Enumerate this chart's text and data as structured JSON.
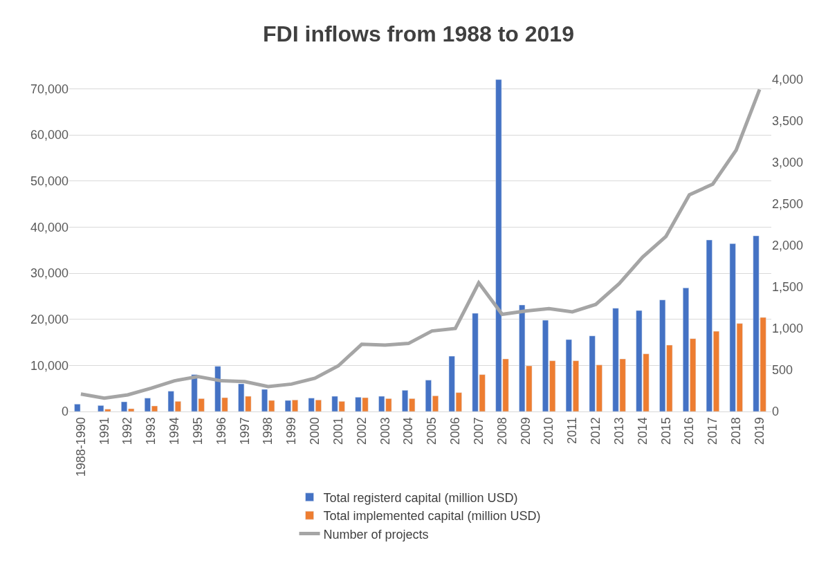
{
  "chart_data": {
    "type": "bar",
    "title": "FDI inflows from 1988 to 2019",
    "categories": [
      "1988-1990",
      "1991",
      "1992",
      "1993",
      "1994",
      "1995",
      "1996",
      "1997",
      "1998",
      "1999",
      "2000",
      "2001",
      "2002",
      "2003",
      "2004",
      "2005",
      "2006",
      "2007",
      "2008",
      "2009",
      "2010",
      "2011",
      "2012",
      "2013",
      "2014",
      "2015",
      "2016",
      "2017",
      "2018",
      "2019"
    ],
    "series": [
      {
        "name": "Total registerd capital (million USD)",
        "color": "#4472c4",
        "values": [
          1600,
          1300,
          2100,
          2900,
          4400,
          8000,
          9800,
          6000,
          4800,
          2400,
          2900,
          3300,
          3100,
          3300,
          4600,
          6800,
          12000,
          21300,
          72000,
          23100,
          19800,
          15600,
          16400,
          22400,
          21900,
          24200,
          26800,
          37200,
          36400,
          38100
        ]
      },
      {
        "name": "Total implemented capital (million USD)",
        "color": "#ed7d31",
        "values": [
          null,
          500,
          600,
          1200,
          2200,
          2800,
          3000,
          3300,
          2400,
          2500,
          2500,
          2200,
          3000,
          2800,
          2800,
          3400,
          4100,
          8000,
          11400,
          9900,
          11000,
          11000,
          10100,
          11400,
          12500,
          14400,
          15800,
          17400,
          19100,
          20400
        ]
      },
      {
        "name": "Number of projects",
        "color": "#a5a5a5",
        "type": "line",
        "axis": "y2",
        "values": [
          210,
          160,
          200,
          280,
          370,
          420,
          370,
          360,
          300,
          330,
          400,
          550,
          810,
          800,
          820,
          970,
          1000,
          1550,
          1170,
          1210,
          1240,
          1200,
          1290,
          1540,
          1860,
          2110,
          2610,
          2740,
          3150,
          3880
        ]
      }
    ],
    "ylim": [
      0,
      72000
    ],
    "yticks": [
      0,
      {
        "value": 10000,
        "label": "10,000"
      },
      {
        "value": 20000,
        "label": "20,000"
      },
      {
        "value": 30000,
        "label": "30,000"
      },
      {
        "value": 40000,
        "label": "40,000"
      },
      {
        "value": 50000,
        "label": "50,000"
      },
      {
        "value": 60000,
        "label": "60,000"
      },
      {
        "value": 70000,
        "label": "70,000"
      }
    ],
    "y2lim": [
      0,
      4000
    ],
    "y2ticks": [
      0,
      500,
      {
        "value": 1000,
        "label": "1,000"
      },
      {
        "value": 1500,
        "label": "1,500"
      },
      {
        "value": 2000,
        "label": "2,000"
      },
      {
        "value": 2500,
        "label": "2,500"
      },
      {
        "value": 3000,
        "label": "3,000"
      },
      {
        "value": 3500,
        "label": "3,500"
      },
      {
        "value": 4000,
        "label": "4,000"
      }
    ],
    "grid": "y",
    "legend": "bottom"
  }
}
